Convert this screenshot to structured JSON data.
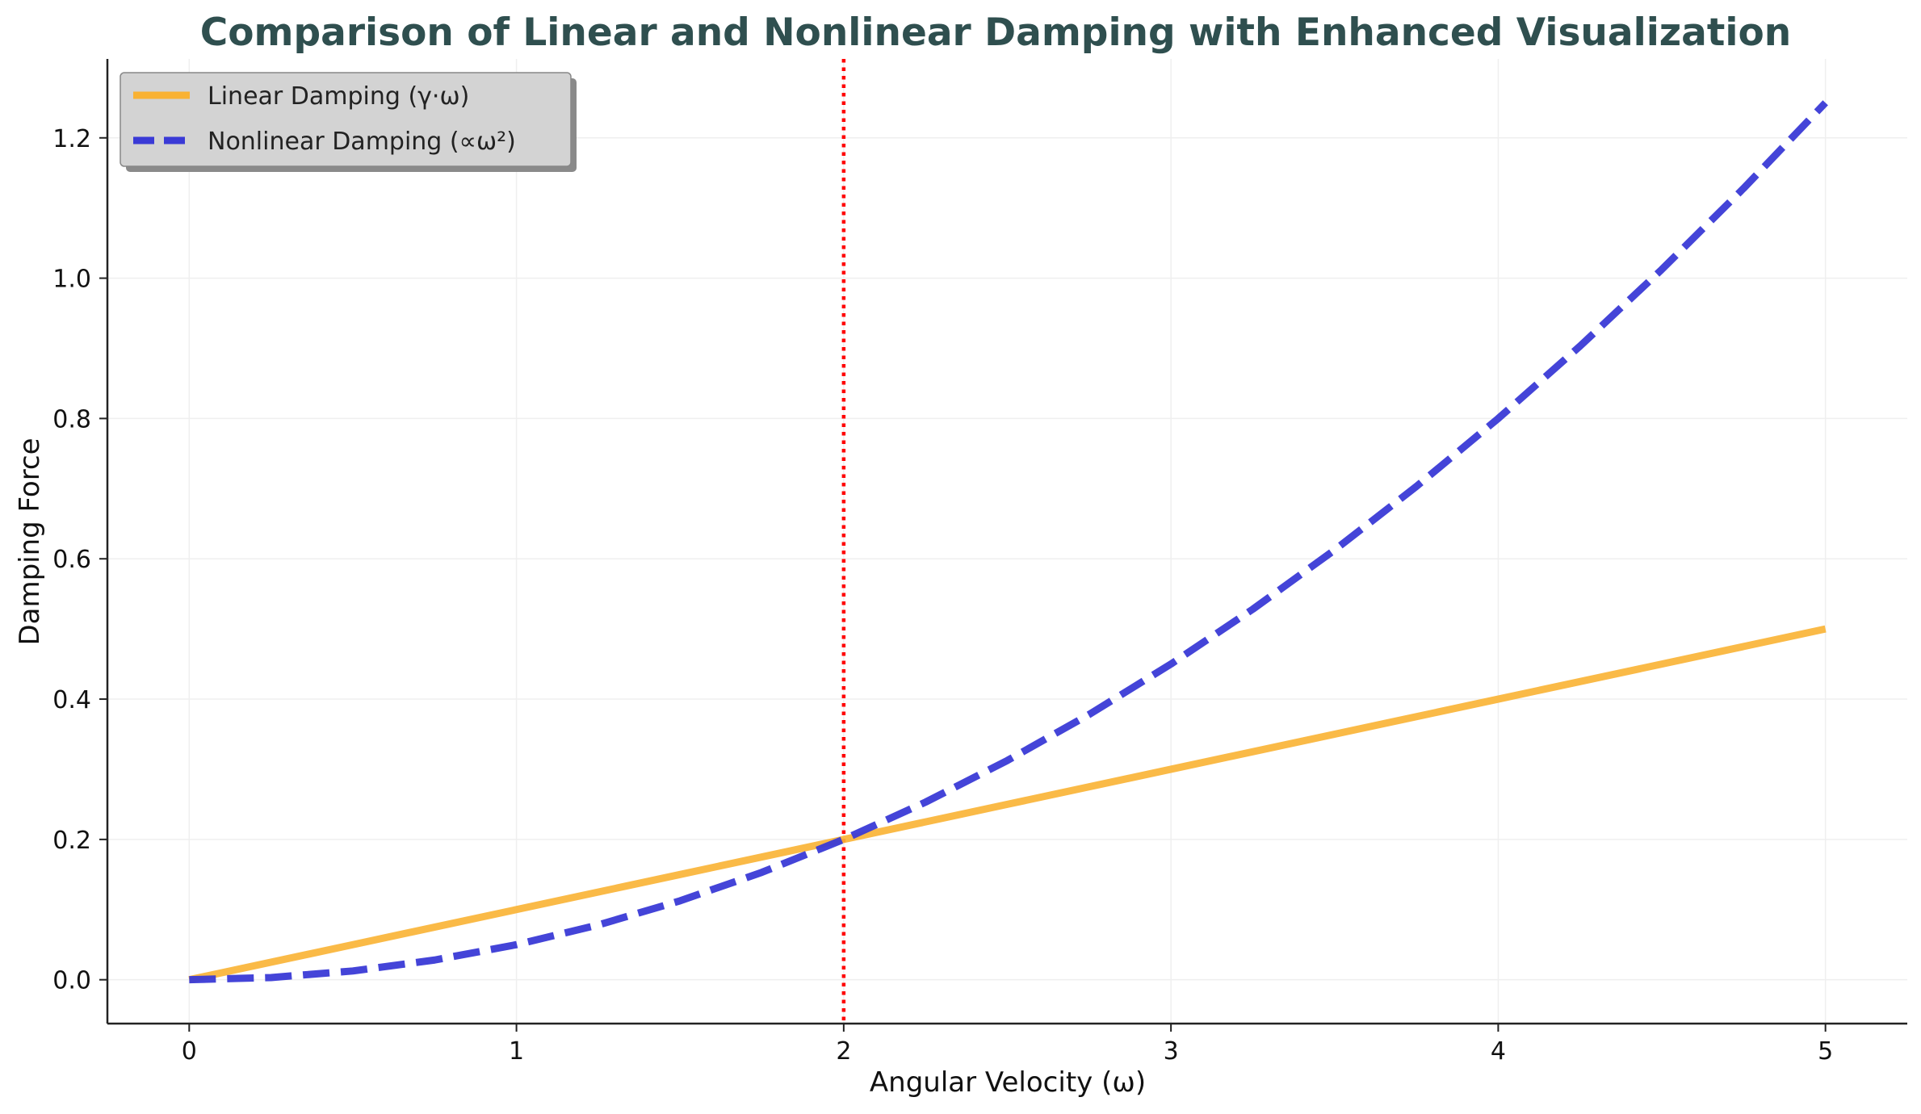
{
  "chart_data": {
    "type": "line",
    "title": "Comparison of Linear and Nonlinear Damping with Enhanced Visualization",
    "xlabel": "Angular Velocity (ω)",
    "ylabel": "Damping Force",
    "xlim": [
      -0.25,
      5.25
    ],
    "ylim": [
      -0.0625,
      1.3125
    ],
    "x_ticks": [
      0,
      1,
      2,
      3,
      4,
      5
    ],
    "x_tick_labels": [
      "0",
      "1",
      "2",
      "3",
      "4",
      "5"
    ],
    "y_ticks": [
      0.0,
      0.2,
      0.4,
      0.6,
      0.8,
      1.0,
      1.2
    ],
    "y_tick_labels": [
      "0.0",
      "0.2",
      "0.4",
      "0.6",
      "0.8",
      "1.0",
      "1.2"
    ],
    "grid": true,
    "legend_position": "top-left",
    "series": [
      {
        "name": "Linear Damping (γ·ω)",
        "style": "solid",
        "color": "#f9b233",
        "x": [
          0,
          0.5,
          1,
          1.5,
          2,
          2.5,
          3,
          3.5,
          4,
          4.5,
          5
        ],
        "values": [
          0,
          0.05,
          0.1,
          0.15,
          0.2,
          0.25,
          0.3,
          0.35,
          0.4,
          0.45,
          0.5
        ]
      },
      {
        "name": "Nonlinear Damping (∝ω²)",
        "style": "dashed",
        "color": "#3a3ad6",
        "x": [
          0,
          0.25,
          0.5,
          0.75,
          1,
          1.25,
          1.5,
          1.75,
          2,
          2.25,
          2.5,
          2.75,
          3,
          3.25,
          3.5,
          3.75,
          4,
          4.25,
          4.5,
          4.75,
          5
        ],
        "values": [
          0,
          0.003125,
          0.0125,
          0.028125,
          0.05,
          0.078125,
          0.1125,
          0.153125,
          0.2,
          0.253125,
          0.3125,
          0.378125,
          0.45,
          0.528125,
          0.6125,
          0.703125,
          0.8,
          0.903125,
          1.0125,
          1.128125,
          1.25
        ]
      }
    ],
    "vertical_line": {
      "x": 2,
      "color": "#ff0000",
      "style": "dotted"
    }
  }
}
